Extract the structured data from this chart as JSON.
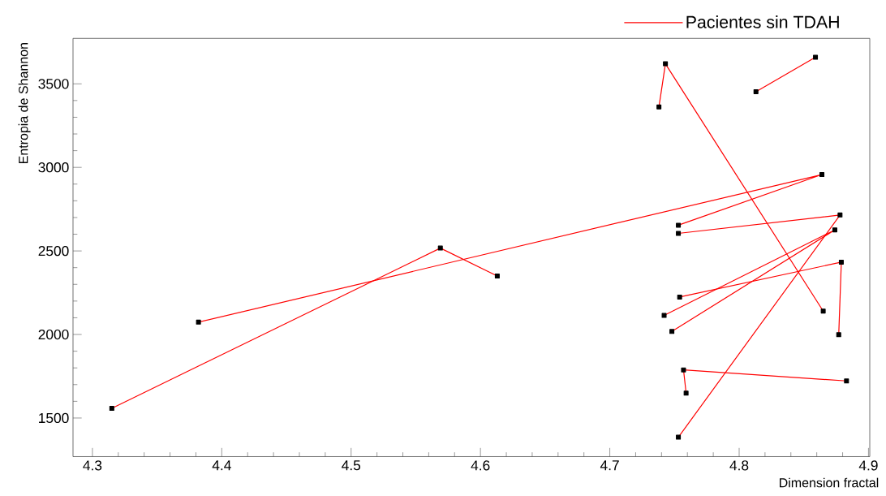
{
  "chart_data": {
    "type": "line",
    "xlabel": "Dimension fractal",
    "ylabel": "Entropia de Shannon",
    "xlim": [
      4.285,
      4.901
    ],
    "ylim": [
      1269,
      3772
    ],
    "xticks": [
      4.3,
      4.4,
      4.5,
      4.6,
      4.7,
      4.8,
      4.9
    ],
    "yticks": [
      1500,
      2000,
      2500,
      3000,
      3500
    ],
    "marker": "square",
    "line_style": "solid",
    "legend": "top right",
    "grid": false,
    "series": [
      {
        "name": "Pacientes sin TDAH",
        "color": "#ff0000",
        "x": [
          4.315,
          4.569,
          4.613
        ],
        "values": [
          1558,
          2517,
          2350
        ]
      },
      {
        "color": "#ff0000",
        "x": [
          4.382,
          4.864,
          4.753
        ],
        "values": [
          2074,
          2957,
          2654
        ]
      },
      {
        "color": "#ff0000",
        "x": [
          4.753,
          4.878,
          4.753
        ],
        "values": [
          2605,
          2715,
          1385
        ]
      },
      {
        "color": "#ff0000",
        "x": [
          4.742,
          4.874,
          4.748
        ],
        "values": [
          2114,
          2626,
          2018
        ]
      },
      {
        "color": "#ff0000",
        "x": [
          4.754,
          4.879,
          4.877
        ],
        "values": [
          2224,
          2433,
          1999
        ]
      },
      {
        "color": "#ff0000",
        "x": [
          4.883,
          4.757,
          4.759
        ],
        "values": [
          1722,
          1788,
          1649
        ]
      },
      {
        "color": "#ff0000",
        "x": [
          4.738,
          4.743,
          4.865
        ],
        "values": [
          3362,
          3620,
          2140
        ]
      },
      {
        "color": "#ff0000",
        "x": [
          4.813,
          4.859
        ],
        "values": [
          3453,
          3659
        ]
      }
    ]
  }
}
